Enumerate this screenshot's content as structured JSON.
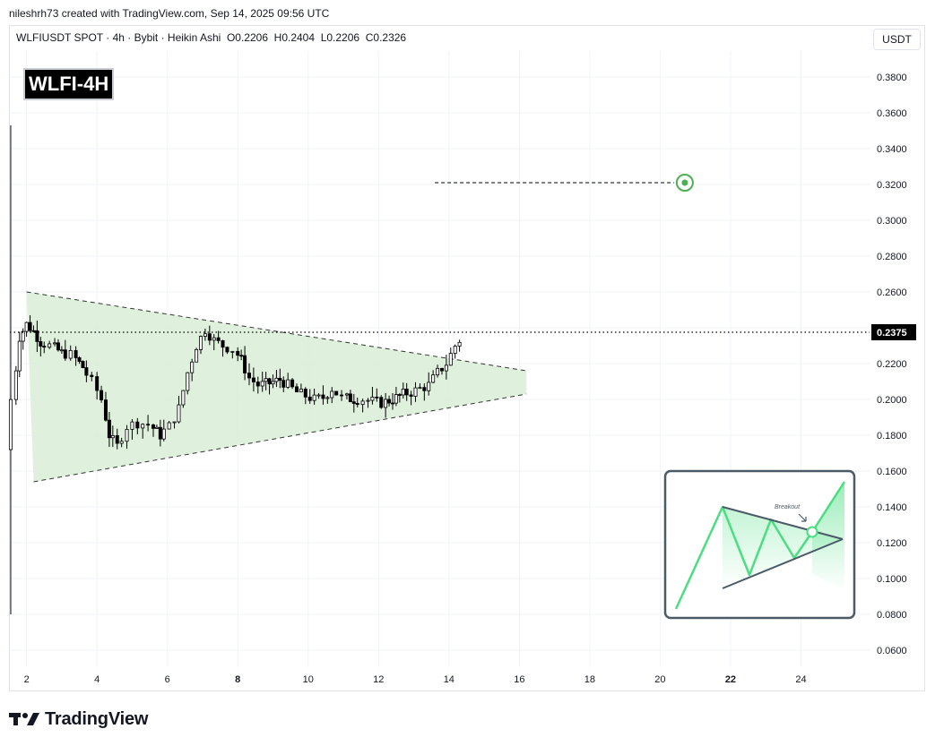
{
  "header": {
    "credit": "nileshrh73 created with TradingView.com, Sep 14, 2025 09:56 UTC",
    "symbol_info": "WLFIUSDT SPOT · 4h · Bybit · Heikin Ashi  O0.2206  H0.2404  L0.2206  C0.2326",
    "currency": "USDT"
  },
  "badge": "WLFI-4H",
  "brand": "TradingView",
  "inset": {
    "label": "Breakout"
  },
  "colors": {
    "up": "#ffffff",
    "down": "#000000",
    "pattern_fill": "#d9efd7",
    "accent": "#4caf50",
    "inset_line": "#4ade80"
  },
  "chart_data": {
    "type": "candlestick",
    "chart_style": "Heikin Ashi",
    "interval": "4h",
    "ylim": [
      0.05,
      0.395
    ],
    "xlim": [
      1.5,
      26.0
    ],
    "y_ticks": [
      "0.0600",
      "0.0800",
      "0.1000",
      "0.1200",
      "0.1400",
      "0.1600",
      "0.1800",
      "0.2000",
      "0.2200",
      "0.2400",
      "0.2600",
      "0.2800",
      "0.3000",
      "0.3200",
      "0.3400",
      "0.3600",
      "0.3800"
    ],
    "x_ticks": [
      {
        "value": 2,
        "label": "2",
        "bold": false
      },
      {
        "value": 4,
        "label": "4",
        "bold": false
      },
      {
        "value": 6,
        "label": "6",
        "bold": false
      },
      {
        "value": 8,
        "label": "8",
        "bold": true
      },
      {
        "value": 10,
        "label": "10",
        "bold": false
      },
      {
        "value": 12,
        "label": "12",
        "bold": false
      },
      {
        "value": 14,
        "label": "14",
        "bold": false
      },
      {
        "value": 16,
        "label": "16",
        "bold": false
      },
      {
        "value": 18,
        "label": "18",
        "bold": false
      },
      {
        "value": 20,
        "label": "20",
        "bold": false
      },
      {
        "value": 22,
        "label": "22",
        "bold": true
      },
      {
        "value": 24,
        "label": "24",
        "bold": false
      }
    ],
    "current_price": {
      "value": 0.2375,
      "label": "0.2375"
    },
    "target": {
      "value": 0.321,
      "x_start": 13.6,
      "x_end": 20.7
    },
    "triangle": {
      "upper": [
        [
          2.0,
          0.26
        ],
        [
          16.2,
          0.216
        ]
      ],
      "lower": [
        [
          2.2,
          0.154
        ],
        [
          16.2,
          0.203
        ]
      ]
    },
    "pivot_points": [
      [
        1.55,
        0.172
      ],
      [
        1.7,
        0.2
      ],
      [
        1.9,
        0.235
      ],
      [
        2.1,
        0.242
      ],
      [
        2.3,
        0.238
      ],
      [
        2.5,
        0.232
      ],
      [
        2.8,
        0.23
      ],
      [
        3.1,
        0.226
      ],
      [
        3.4,
        0.225
      ],
      [
        3.7,
        0.218
      ],
      [
        4.0,
        0.21
      ],
      [
        4.25,
        0.2
      ],
      [
        4.45,
        0.18
      ],
      [
        4.7,
        0.174
      ],
      [
        5.0,
        0.185
      ],
      [
        5.3,
        0.187
      ],
      [
        5.6,
        0.186
      ],
      [
        5.9,
        0.18
      ],
      [
        6.2,
        0.185
      ],
      [
        6.45,
        0.195
      ],
      [
        6.7,
        0.215
      ],
      [
        6.95,
        0.23
      ],
      [
        7.2,
        0.239
      ],
      [
        7.45,
        0.233
      ],
      [
        7.7,
        0.23
      ],
      [
        8.0,
        0.228
      ],
      [
        8.2,
        0.222
      ],
      [
        8.45,
        0.212
      ],
      [
        8.7,
        0.208
      ],
      [
        9.0,
        0.209
      ],
      [
        9.3,
        0.211
      ],
      [
        9.55,
        0.208
      ],
      [
        9.8,
        0.204
      ],
      [
        10.05,
        0.202
      ],
      [
        10.3,
        0.2
      ],
      [
        10.55,
        0.201
      ],
      [
        10.8,
        0.206
      ],
      [
        11.1,
        0.201
      ],
      [
        11.4,
        0.2
      ],
      [
        11.7,
        0.2
      ],
      [
        11.95,
        0.199
      ],
      [
        12.2,
        0.198
      ],
      [
        12.5,
        0.2
      ],
      [
        12.8,
        0.203
      ],
      [
        13.05,
        0.204
      ],
      [
        13.3,
        0.206
      ],
      [
        13.55,
        0.208
      ],
      [
        13.8,
        0.215
      ],
      [
        14.05,
        0.22
      ],
      [
        14.3,
        0.23
      ],
      [
        14.4,
        0.233
      ]
    ],
    "spike": {
      "x": 1.55,
      "high": 0.353,
      "low": 0.08
    }
  }
}
